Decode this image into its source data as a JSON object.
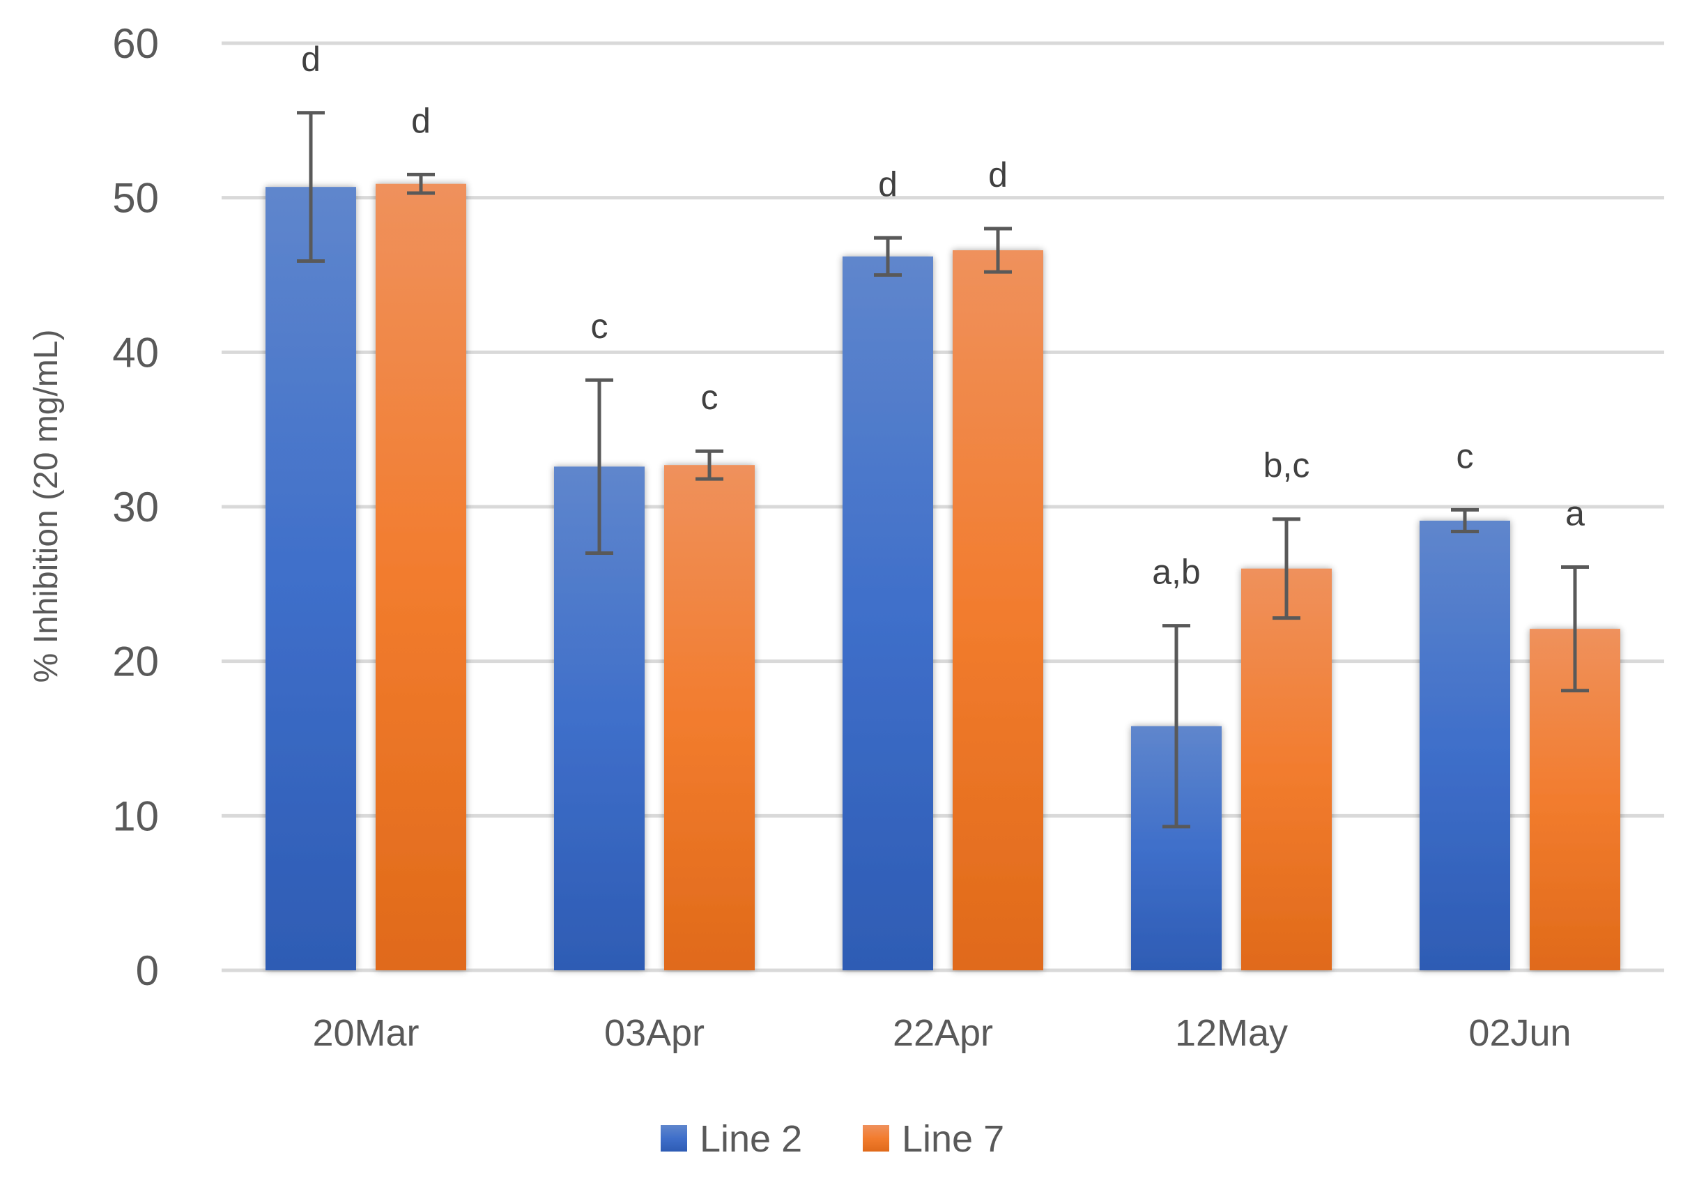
{
  "chart_data": {
    "type": "bar",
    "title": "",
    "xlabel": "",
    "ylabel": "% Inhibition (20 mg/mL)",
    "ylim": [
      0,
      60
    ],
    "yticks": [
      0,
      10,
      20,
      30,
      40,
      50,
      60
    ],
    "grid": true,
    "legend_position": "bottom-center",
    "categories": [
      "20Mar",
      "03Apr",
      "22Apr",
      "12May",
      "02Jun"
    ],
    "series": [
      {
        "name": "Line 2",
        "color": "#4472C4",
        "values": [
          50.7,
          32.6,
          46.2,
          15.8,
          29.1
        ],
        "error": [
          4.8,
          5.6,
          1.2,
          6.5,
          0.7
        ],
        "labels": [
          "d",
          "c",
          "d",
          "a,b",
          "c"
        ]
      },
      {
        "name": "Line 7",
        "color": "#ED7D31",
        "values": [
          50.9,
          32.7,
          46.6,
          26.0,
          22.1
        ],
        "error": [
          0.6,
          0.9,
          1.4,
          3.2,
          4.0
        ],
        "labels": [
          "d",
          "c",
          "d",
          "b,c",
          "a"
        ]
      }
    ]
  }
}
